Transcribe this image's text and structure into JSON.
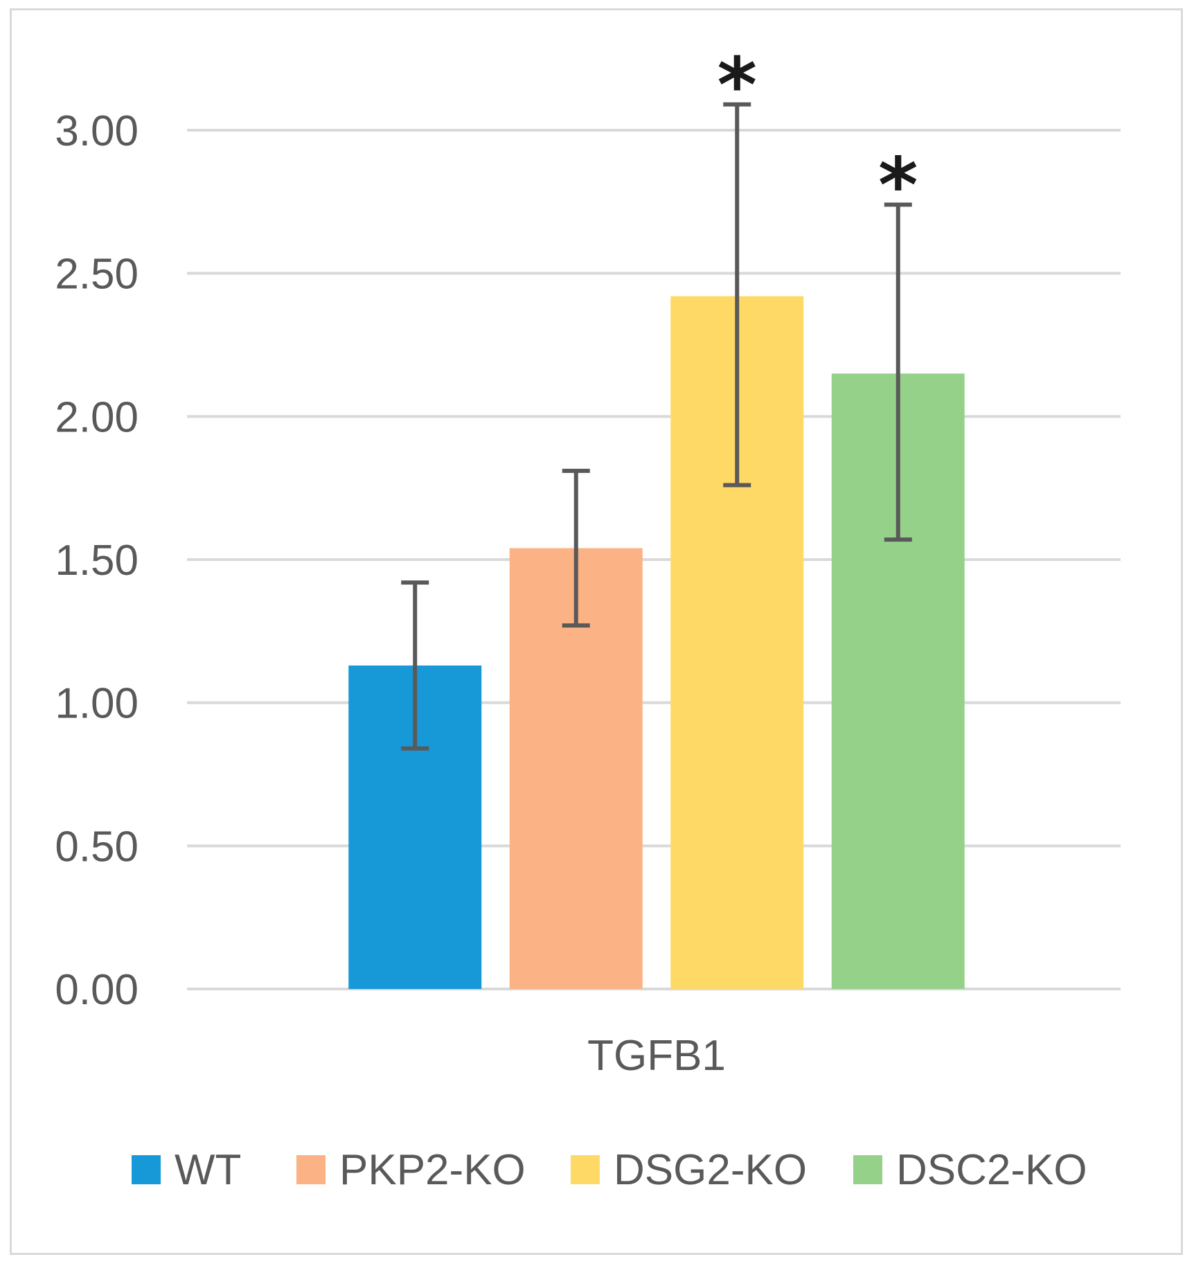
{
  "chart_data": {
    "type": "bar",
    "categories": [
      "TGFB1"
    ],
    "series": [
      {
        "name": "WT",
        "values": [
          1.13
        ],
        "error_low": [
          0.84
        ],
        "error_high": [
          1.42
        ],
        "color": "#1799d8",
        "annotation": ""
      },
      {
        "name": "PKP2-KO",
        "values": [
          1.54
        ],
        "error_low": [
          1.27
        ],
        "error_high": [
          1.81
        ],
        "color": "#fbb284",
        "annotation": ""
      },
      {
        "name": "DSG2-KO",
        "values": [
          2.42
        ],
        "error_low": [
          1.76
        ],
        "error_high": [
          3.09
        ],
        "color": "#ffd966",
        "annotation": "*"
      },
      {
        "name": "DSC2-KO",
        "values": [
          2.15
        ],
        "error_low": [
          1.57
        ],
        "error_high": [
          2.74
        ],
        "color": "#96d189",
        "annotation": "*"
      }
    ],
    "y_ticks": [
      "0.00",
      "0.50",
      "1.00",
      "1.50",
      "2.00",
      "2.50",
      "3.00"
    ],
    "ylim": [
      0,
      3.0
    ],
    "title": "",
    "xlabel": "",
    "ylabel": "",
    "grid": true,
    "legend_position": "bottom",
    "colors": {
      "grid": "#d9d9d9",
      "error_bar": "#595959",
      "text": "#595959"
    }
  }
}
